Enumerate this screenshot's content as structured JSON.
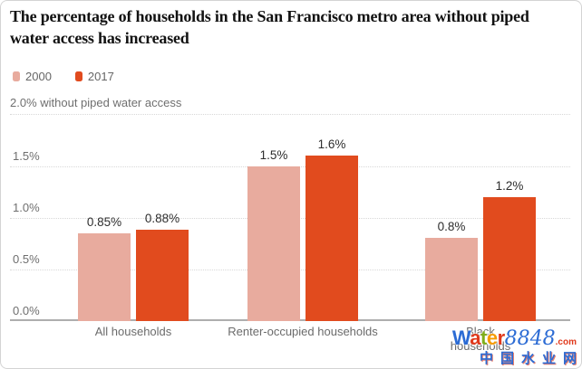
{
  "title": "The percentage of households in the San Francisco metro area without piped water access has increased",
  "legend": {
    "items": [
      {
        "label": "2000",
        "color": "#e8ab9e"
      },
      {
        "label": "2017",
        "color": "#e14b1e"
      }
    ]
  },
  "chart_data": {
    "type": "bar",
    "title": "The percentage of households in the San Francisco metro area without piped water access has increased",
    "categories": [
      "All households",
      "Renter-occupied households",
      "Black households"
    ],
    "series": [
      {
        "name": "2000",
        "color": "#e8ab9e",
        "values": [
          0.85,
          1.5,
          0.8
        ],
        "value_labels": [
          "0.85%",
          "1.5%",
          "0.8%"
        ]
      },
      {
        "name": "2017",
        "color": "#e14b1e",
        "values": [
          0.88,
          1.6,
          1.2
        ],
        "value_labels": [
          "0.88%",
          "1.6%",
          "1.2%"
        ]
      }
    ],
    "y_axis_note": "2.0% without piped water access",
    "yticks": [
      {
        "label": "1.5%",
        "value": 1.5
      },
      {
        "label": "1.0%",
        "value": 1.0
      },
      {
        "label": "0.5%",
        "value": 0.5
      },
      {
        "label": "0.0%",
        "value": 0.0
      }
    ],
    "ylim": [
      0,
      2.0
    ],
    "unit": "%",
    "grid": "dotted-horizontal",
    "legend_position": "top-left"
  },
  "watermark": {
    "brand_letters": [
      {
        "ch": "W",
        "color": "#2b6bd4"
      },
      {
        "ch": "a",
        "color": "#e0391c"
      },
      {
        "ch": "t",
        "color": "#7fae1c"
      },
      {
        "ch": "e",
        "color": "#f59b00"
      },
      {
        "ch": "r",
        "color": "#e0391c"
      }
    ],
    "brand_number": "8848",
    "brand_number_color": "#2b6bd4",
    "brand_tld": ".com",
    "brand_tld_color": "#e0391c",
    "tagline": "中国水业网",
    "tagline_color": "#2b6bd4"
  }
}
